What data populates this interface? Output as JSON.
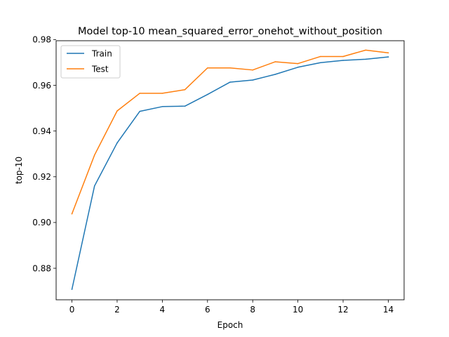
{
  "chart_data": {
    "type": "line",
    "title": "Model top-10 mean_squared_error_onehot_without_position",
    "xlabel": "Epoch",
    "ylabel": "top-10",
    "x": [
      0,
      1,
      2,
      3,
      4,
      5,
      6,
      7,
      8,
      9,
      10,
      11,
      12,
      13,
      14
    ],
    "xlim": [
      -0.7,
      14.7
    ],
    "ylim": [
      0.8662,
      0.9795
    ],
    "xticks": [
      0,
      2,
      4,
      6,
      8,
      10,
      12,
      14
    ],
    "yticks": [
      0.88,
      0.9,
      0.92,
      0.94,
      0.96,
      0.98
    ],
    "grid": false,
    "legend_position": "upper-left",
    "series": [
      {
        "name": "Train",
        "color": "#1f77b4",
        "values": [
          0.8708,
          0.916,
          0.9348,
          0.9486,
          0.9507,
          0.9509,
          0.956,
          0.9614,
          0.9623,
          0.9648,
          0.9679,
          0.9699,
          0.9709,
          0.9714,
          0.9724
        ]
      },
      {
        "name": "Test",
        "color": "#ff7f0e",
        "values": [
          0.9038,
          0.9295,
          0.9488,
          0.9565,
          0.9565,
          0.9581,
          0.9676,
          0.9676,
          0.9667,
          0.9703,
          0.9695,
          0.9726,
          0.9726,
          0.9754,
          0.9742
        ]
      }
    ]
  }
}
